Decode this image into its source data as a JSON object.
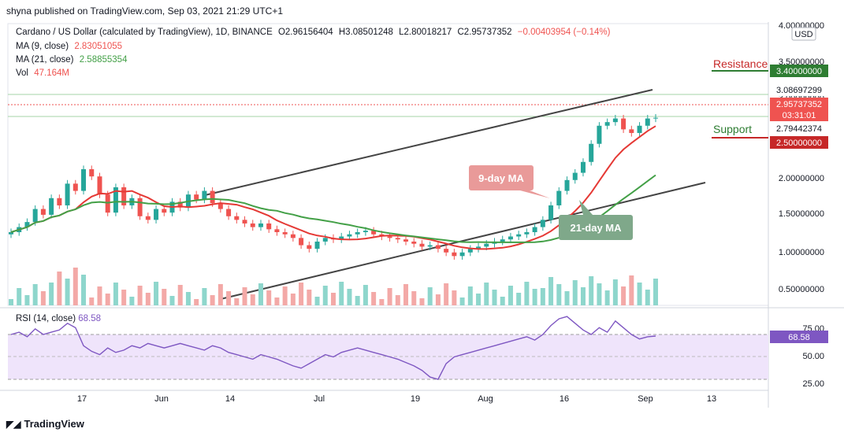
{
  "header": {
    "published": "shyna published on TradingView.com, Sep 03, 2021 21:29 UTC+1"
  },
  "legend": {
    "title": "Cardano / US Dollar (calculated by TradingView), 1D, BINANCE",
    "o": "O2.96156404",
    "h": "H3.08501248",
    "l": "L2.80018217",
    "c": "C2.95737352",
    "chg": "−0.00403954 (−0.14%)",
    "ma9_label": "MA (9, close)",
    "ma9_val": "2.83051055",
    "ma21_label": "MA (21, close)",
    "ma21_val": "2.58855354",
    "vol_label": "Vol",
    "vol_val": "47.164M"
  },
  "rsi": {
    "label": "RSI (14, close)",
    "value": "68.58"
  },
  "annotations": {
    "resistance": "Resistance",
    "support": "Support",
    "ma9": "9-day MA",
    "ma21": "21-day MA"
  },
  "price_axis": {
    "currency": "USD",
    "ticks": [
      "4.00000000",
      "3.50000000",
      "3.00000000",
      "2.50000000",
      "2.00000000",
      "1.50000000",
      "1.00000000",
      "0.50000000"
    ],
    "resistance_tag": "3.40000000",
    "high_tag": "3.08697299",
    "last_tag": "2.95737352",
    "countdown": "03:31:01",
    "low_tag": "2.79442374",
    "support_tag": "2.50000000"
  },
  "rsi_axis": {
    "ticks": [
      "75.00",
      "50.00",
      "25.00"
    ]
  },
  "time_axis": {
    "ticks": [
      "17",
      "Jun",
      "14",
      "Jul",
      "19",
      "Aug",
      "16",
      "Sep",
      "13"
    ]
  },
  "footer": {
    "brand": "TradingView"
  },
  "colors": {
    "up": "#26a69a",
    "down": "#ef5350",
    "ma9": "#e53935",
    "ma21": "#43a047",
    "rsi": "#7e57c2",
    "resistance": "#2e7d32",
    "support": "#c62828"
  },
  "chart_data": {
    "type": "candlestick",
    "title": "Cardano / US Dollar (calculated by TradingView), 1D, BINANCE",
    "ylim": [
      0.3,
      4.0
    ],
    "price_close_series": [
      1.38,
      1.45,
      1.52,
      1.7,
      1.62,
      1.85,
      1.75,
      2.05,
      1.95,
      2.25,
      2.15,
      1.9,
      1.65,
      2.0,
      1.75,
      1.85,
      1.6,
      1.55,
      1.7,
      1.65,
      1.8,
      1.72,
      1.9,
      1.83,
      1.95,
      1.78,
      1.7,
      1.6,
      1.55,
      1.5,
      1.45,
      1.5,
      1.42,
      1.38,
      1.35,
      1.3,
      1.2,
      1.15,
      1.25,
      1.3,
      1.28,
      1.32,
      1.35,
      1.38,
      1.4,
      1.35,
      1.32,
      1.3,
      1.28,
      1.25,
      1.22,
      1.18,
      1.2,
      1.15,
      1.1,
      1.05,
      1.1,
      1.15,
      1.18,
      1.22,
      1.25,
      1.28,
      1.32,
      1.35,
      1.38,
      1.45,
      1.55,
      1.75,
      1.95,
      2.1,
      2.2,
      2.35,
      2.6,
      2.85,
      2.9,
      2.95,
      2.8,
      2.75,
      2.85,
      2.95,
      2.96
    ],
    "rsi_series": [
      70,
      72,
      68,
      75,
      70,
      72,
      74,
      80,
      76,
      60,
      55,
      52,
      58,
      54,
      56,
      60,
      58,
      62,
      60,
      58,
      60,
      62,
      60,
      58,
      56,
      60,
      58,
      54,
      52,
      50,
      48,
      52,
      50,
      48,
      45,
      42,
      40,
      44,
      48,
      52,
      50,
      54,
      56,
      58,
      56,
      54,
      52,
      50,
      48,
      45,
      42,
      38,
      32,
      30,
      44,
      50,
      52,
      54,
      56,
      58,
      60,
      62,
      64,
      66,
      68,
      65,
      70,
      78,
      84,
      86,
      80,
      74,
      70,
      76,
      72,
      82,
      76,
      70,
      66,
      68,
      68.58
    ]
  }
}
